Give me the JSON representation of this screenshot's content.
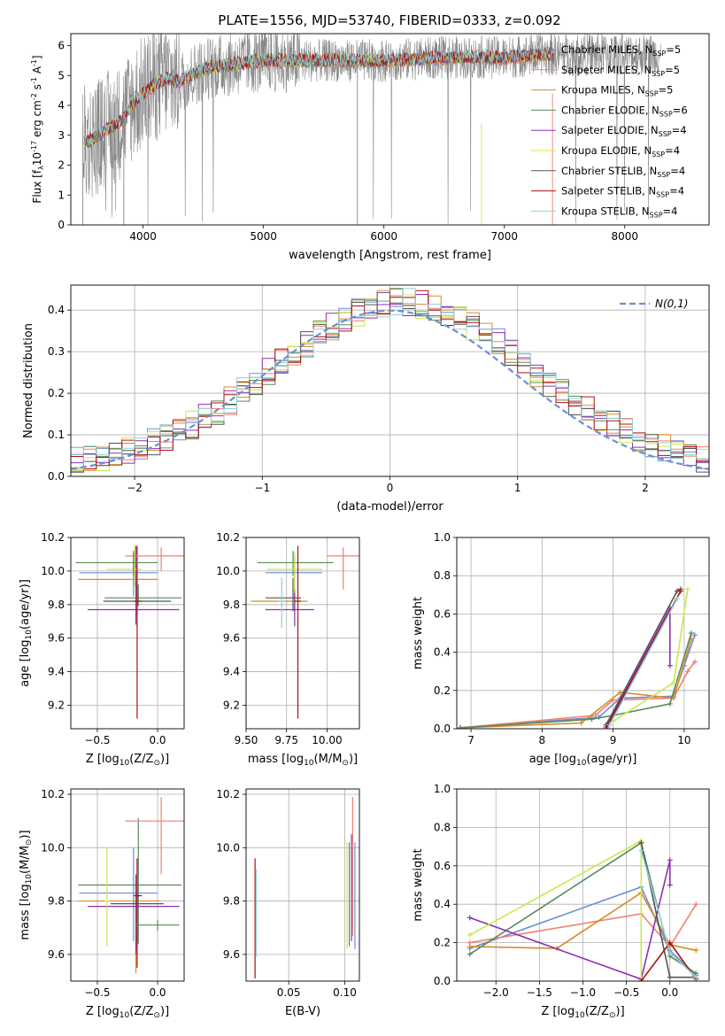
{
  "title": "PLATE=1556, MJD=53740, FIBERID=0333, z=0.092",
  "legend_entries": [
    {
      "name": "Chabrier MILES, N$_{SSP}$=5",
      "label_main": "Chabrier MILES, N",
      "label_sub": "SSP",
      "label_tail": "=5",
      "color": "#6a8fd6"
    },
    {
      "name": "Salpeter MILES, N$_{SSP}$=5",
      "label_main": "Salpeter MILES, N",
      "label_sub": "SSP",
      "label_tail": "=5",
      "color": "#f0826e"
    },
    {
      "name": "Kroupa MILES, N$_{SSP}$=5",
      "label_main": "Kroupa MILES, N",
      "label_sub": "SSP",
      "label_tail": "=5",
      "color": "#d98a2a"
    },
    {
      "name": "Chabrier ELODIE, N$_{SSP}$=6",
      "label_main": "Chabrier ELODIE, N",
      "label_sub": "SSP",
      "label_tail": "=6",
      "color": "#5a8a5a"
    },
    {
      "name": "Salpeter ELODIE, N$_{SSP}$=4",
      "label_main": "Salpeter ELODIE, N",
      "label_sub": "SSP",
      "label_tail": "=4",
      "color": "#8e2fb5"
    },
    {
      "name": "Kroupa ELODIE, N$_{SSP}$=4",
      "label_main": "Kroupa ELODIE, N",
      "label_sub": "SSP",
      "label_tail": "=4",
      "color": "#c8e84a"
    },
    {
      "name": "Chabrier STELIB, N$_{SSP}$=4",
      "label_main": "Chabrier STELIB, N",
      "label_sub": "SSP",
      "label_tail": "=4",
      "color": "#555555"
    },
    {
      "name": "Salpeter STELIB, N$_{SSP}$=4",
      "label_main": "Salpeter STELIB, N",
      "label_sub": "SSP",
      "label_tail": "=4",
      "color": "#b01010"
    },
    {
      "name": "Kroupa STELIB, N$_{SSP}$=4",
      "label_main": "Kroupa STELIB, N",
      "label_sub": "SSP",
      "label_tail": "=4",
      "color": "#8fd0d8"
    }
  ],
  "chart_data": [
    {
      "id": "spectrum",
      "type": "line",
      "xlabel": "wavelength [Angstrom, rest frame]",
      "ylabel_parts": [
        "Flux [f",
        "λ",
        "10",
        "-17",
        " erg cm",
        "-2",
        " s",
        "-1",
        " A",
        "-1",
        "]"
      ],
      "xlim": [
        3400,
        8700
      ],
      "ylim": [
        0,
        6.4
      ],
      "xticks": [
        4000,
        5000,
        6000,
        7000,
        8000
      ],
      "yticks": [
        0,
        1,
        2,
        3,
        4,
        5,
        6
      ],
      "data_color": "#888888",
      "model_color": "#70d4dc",
      "spectrum_knots": {
        "x": [
          3500,
          3600,
          3700,
          3800,
          3900,
          4000,
          4100,
          4200,
          4300,
          4400,
          4500,
          4600,
          4800,
          5000,
          5200,
          5500,
          6000,
          6500,
          7000,
          7300,
          7420
        ],
        "y": [
          2.7,
          2.9,
          3.2,
          3.4,
          4.0,
          4.4,
          4.7,
          4.9,
          4.8,
          5.0,
          5.2,
          5.3,
          5.4,
          5.5,
          5.5,
          5.5,
          5.5,
          5.6,
          5.6,
          5.7,
          5.7
        ]
      },
      "legend_position": "upper-right"
    },
    {
      "id": "residuals",
      "type": "histogram",
      "xlabel": "(data-model)/error",
      "ylabel": "Normed distribution",
      "xlim": [
        -2.5,
        2.5
      ],
      "ylim": [
        0,
        0.46
      ],
      "xticks": [
        -2,
        -1,
        0,
        1,
        2
      ],
      "yticks": [
        0,
        0.1,
        0.2,
        0.3,
        0.4
      ],
      "grid": true,
      "reference_label": "N(0,1)",
      "reference_color": "#6a8fd6",
      "bin_width": 0.1,
      "bin_centers": [
        -2.45,
        -2.35,
        -2.25,
        -2.15,
        -2.05,
        -1.95,
        -1.85,
        -1.75,
        -1.65,
        -1.55,
        -1.45,
        -1.35,
        -1.25,
        -1.15,
        -1.05,
        -0.95,
        -0.85,
        -0.75,
        -0.65,
        -0.55,
        -0.45,
        -0.35,
        -0.25,
        -0.15,
        -0.05,
        0.05,
        0.15,
        0.25,
        0.35,
        0.45,
        0.55,
        0.65,
        0.75,
        0.85,
        0.95,
        1.05,
        1.15,
        1.25,
        1.35,
        1.45,
        1.55,
        1.65,
        1.75,
        1.85,
        1.95,
        2.05,
        2.15,
        2.25,
        2.35,
        2.45
      ],
      "legend_position": "upper-right"
    },
    {
      "id": "age-vs-Z",
      "type": "errorbar",
      "xlabel_parts": [
        "Z [log",
        "10",
        "(Z/Z",
        "⊙",
        ")]"
      ],
      "ylabel_parts": [
        "age  [log",
        "10",
        "(age/yr)]"
      ],
      "xlim": [
        -0.72,
        0.22
      ],
      "ylim": [
        9.06,
        10.2
      ],
      "xticks": [
        -0.5,
        0.0
      ],
      "yticks": [
        9.2,
        9.4,
        9.6,
        9.8,
        10.0,
        10.2
      ],
      "grid": true,
      "points": [
        {
          "x": -0.2,
          "xerr": [
            0.45,
            0.2
          ],
          "y": 9.99,
          "yerr": [
            0.14,
            0.12
          ],
          "series": 0
        },
        {
          "x": -0.18,
          "xerr": [
            0.48,
            0.18
          ],
          "y": 9.95,
          "yerr": [
            0.08,
            0.1
          ],
          "series": 2
        },
        {
          "x": -0.16,
          "xerr": [
            0.28,
            0.36
          ],
          "y": 9.84,
          "yerr": [
            0.05,
            0.08
          ],
          "series": 3
        },
        {
          "x": -0.18,
          "xerr": [
            0.4,
            0.36
          ],
          "y": 9.77,
          "yerr": [
            0.09,
            0.38
          ],
          "series": 4
        },
        {
          "x": -0.19,
          "xerr": [
            0.23,
            0.06
          ],
          "y": 10.01,
          "yerr": [
            0.1,
            0.14
          ],
          "series": 5
        },
        {
          "x": -0.17,
          "xerr": [
            0.28,
            0.28
          ],
          "y": 9.82,
          "yerr": [
            0.08,
            0.12
          ],
          "series": 6
        },
        {
          "x": -0.17,
          "xerr": [
            0.03,
            0.04
          ],
          "y": 9.82,
          "yerr": [
            0.7,
            0.33
          ],
          "series": 7
        },
        {
          "x": 0.03,
          "xerr": [
            0.3,
            0.2
          ],
          "y": 10.09,
          "yerr": [
            0.09,
            0.05
          ],
          "series": 1
        },
        {
          "x": -0.2,
          "xerr": [
            0.48,
            0.2
          ],
          "y": 10.05,
          "yerr": [
            0.08,
            0.07
          ],
          "series": 3
        }
      ]
    },
    {
      "id": "age-vs-mass",
      "type": "errorbar",
      "xlabel_parts": [
        "mass [log",
        "10",
        "(M/M",
        "⊙",
        ")]"
      ],
      "ylabel_parts": [],
      "xlim": [
        9.5,
        10.2
      ],
      "ylim": [
        9.06,
        10.2
      ],
      "xticks": [
        9.5,
        9.75,
        10.0
      ],
      "yticks": [
        9.2,
        9.4,
        9.6,
        9.8,
        10.0,
        10.2
      ],
      "grid": true,
      "points": [
        {
          "x": 9.8,
          "xerr": [
            0.18,
            0.17
          ],
          "y": 9.99,
          "yerr": [
            0.12,
            0.1
          ],
          "series": 0
        },
        {
          "x": 9.8,
          "xerr": [
            0.27,
            0.08
          ],
          "y": 9.82,
          "yerr": [
            0.06,
            0.12
          ],
          "series": 2
        },
        {
          "x": 9.79,
          "xerr": [
            0.22,
            0.25
          ],
          "y": 10.05,
          "yerr": [
            0.08,
            0.07
          ],
          "series": 3
        },
        {
          "x": 9.8,
          "xerr": [
            0.18,
            0.12
          ],
          "y": 9.77,
          "yerr": [
            0.1,
            0.1
          ],
          "series": 4
        },
        {
          "x": 9.8,
          "xerr": [
            0.17,
            0.17
          ],
          "y": 10.01,
          "yerr": [
            0.12,
            0.1
          ],
          "series": 5
        },
        {
          "x": 9.79,
          "xerr": [
            0.17,
            0.05
          ],
          "y": 9.84,
          "yerr": [
            0.08,
            0.12
          ],
          "series": 6
        },
        {
          "x": 9.82,
          "xerr": [
            0.02,
            0.02
          ],
          "y": 9.82,
          "yerr": [
            0.7,
            0.33
          ],
          "series": 7
        },
        {
          "x": 10.1,
          "xerr": [
            0.1,
            0.12
          ],
          "y": 10.09,
          "yerr": [
            0.2,
            0.05
          ],
          "series": 1
        },
        {
          "x": 9.72,
          "xerr": [
            0.02,
            0.02
          ],
          "y": 9.82,
          "yerr": [
            0.16,
            0.14
          ],
          "series": 8
        }
      ]
    },
    {
      "id": "massweight-vs-age",
      "type": "line",
      "xlabel_parts": [
        "age  [log",
        "10",
        "(age/yr)]"
      ],
      "ylabel": "mass weight",
      "xlim": [
        6.8,
        10.35
      ],
      "ylim": [
        0,
        1.0
      ],
      "xticks": [
        7,
        8,
        9,
        10
      ],
      "yticks": [
        0.0,
        0.2,
        0.4,
        0.6,
        0.8,
        1.0
      ],
      "grid": true,
      "series": [
        {
          "idx": 0,
          "x": [
            6.85,
            8.8,
            9.1,
            9.85,
            10.0,
            10.15
          ],
          "y": [
            0.005,
            0.06,
            0.16,
            0.17,
            0.33,
            0.49
          ]
        },
        {
          "idx": 1,
          "x": [
            6.85,
            8.75,
            9.0,
            9.85,
            10.05,
            10.15
          ],
          "y": [
            0.005,
            0.07,
            0.15,
            0.16,
            0.3,
            0.35
          ]
        },
        {
          "idx": 2,
          "x": [
            6.85,
            8.55,
            9.1,
            9.85,
            10.1
          ],
          "y": [
            0.005,
            0.03,
            0.19,
            0.16,
            0.47
          ]
        },
        {
          "idx": 3,
          "x": [
            6.85,
            8.7,
            9.0,
            9.8,
            10.1
          ],
          "y": [
            0.005,
            0.05,
            0.07,
            0.13,
            0.5
          ]
        },
        {
          "idx": 4,
          "x": [
            8.9,
            9.8,
            9.8
          ],
          "y": [
            0.01,
            0.63,
            0.33
          ]
        },
        {
          "idx": 5,
          "x": [
            9.0,
            9.85,
            10.05
          ],
          "y": [
            0.04,
            0.24,
            0.73
          ]
        },
        {
          "idx": 6,
          "x": [
            8.9,
            9.9,
            9.95
          ],
          "y": [
            0.02,
            0.72,
            0.73
          ]
        },
        {
          "idx": 7,
          "x": [
            8.9,
            9.95
          ],
          "y": [
            0.0,
            0.72
          ]
        },
        {
          "idx": 8,
          "x": [
            8.95,
            9.9
          ],
          "y": [
            0.02,
            0.68
          ]
        }
      ]
    },
    {
      "id": "mass-vs-Z",
      "type": "errorbar",
      "xlabel_parts": [
        "Z [log",
        "10",
        "(Z/Z",
        "⊙",
        ")]"
      ],
      "ylabel_parts": [
        "mass [log",
        "10",
        "(M/M",
        "⊙",
        ")]"
      ],
      "xlim": [
        -0.72,
        0.22
      ],
      "ylim": [
        9.5,
        10.22
      ],
      "xticks": [
        -0.5,
        0.0
      ],
      "yticks": [
        9.6,
        9.8,
        10.0,
        10.2
      ],
      "grid": true,
      "points": [
        {
          "x": -0.2,
          "xerr": [
            0.45,
            0.2
          ],
          "y": 9.83,
          "yerr": [
            0.18,
            0.17
          ],
          "series": 0
        },
        {
          "x": -0.18,
          "xerr": [
            0.48,
            0.2
          ],
          "y": 9.8,
          "yerr": [
            0.27,
            0.08
          ],
          "series": 2
        },
        {
          "x": -0.16,
          "xerr": [
            0.5,
            0.36
          ],
          "y": 9.86,
          "yerr": [
            0.22,
            0.25
          ],
          "series": 3
        },
        {
          "x": -0.18,
          "xerr": [
            0.4,
            0.36
          ],
          "y": 9.78,
          "yerr": [
            0.18,
            0.12
          ],
          "series": 4
        },
        {
          "x": -0.42,
          "xerr": [
            0.02,
            0.02
          ],
          "y": 9.8,
          "yerr": [
            0.17,
            0.2
          ],
          "series": 5
        },
        {
          "x": -0.17,
          "xerr": [
            0.22,
            0.22
          ],
          "y": 9.79,
          "yerr": [
            0.17,
            0.05
          ],
          "series": 6
        },
        {
          "x": -0.17,
          "xerr": [
            0.03,
            0.04
          ],
          "y": 9.82,
          "yerr": [
            0.27,
            0.14
          ],
          "series": 7
        },
        {
          "x": 0.03,
          "xerr": [
            0.3,
            0.2
          ],
          "y": 10.1,
          "yerr": [
            0.2,
            0.09
          ],
          "series": 1
        },
        {
          "x": 0.0,
          "xerr": [
            0.18,
            0.18
          ],
          "y": 9.71,
          "yerr": [
            0.02,
            0.02
          ],
          "series": 3
        }
      ]
    },
    {
      "id": "mass-vs-EBV",
      "type": "errorbar",
      "xlabel": "E(B-V)",
      "ylabel_parts": [],
      "xlim": [
        0.012,
        0.113
      ],
      "ylim": [
        9.5,
        10.22
      ],
      "xticks": [
        0.05,
        0.1
      ],
      "yticks": [
        9.6,
        9.8,
        10.0,
        10.2
      ],
      "grid": true,
      "points": [
        {
          "x": 0.02,
          "xerr": [
            0,
            0
          ],
          "y": 9.77,
          "yerr": [
            0.26,
            0.19
          ],
          "series": 7
        },
        {
          "x": 0.021,
          "xerr": [
            0,
            0
          ],
          "y": 9.76,
          "yerr": [
            0.17,
            0.16
          ],
          "series": 8
        },
        {
          "x": 0.102,
          "xerr": [
            0,
            0
          ],
          "y": 9.82,
          "yerr": [
            0.2,
            0.2
          ],
          "series": 5
        },
        {
          "x": 0.104,
          "xerr": [
            0,
            0
          ],
          "y": 9.82,
          "yerr": [
            0.19,
            0.2
          ],
          "series": 3
        },
        {
          "x": 0.106,
          "xerr": [
            0,
            0
          ],
          "y": 9.85,
          "yerr": [
            0.2,
            0.2
          ],
          "series": 4
        },
        {
          "x": 0.107,
          "xerr": [
            0,
            0
          ],
          "y": 9.9,
          "yerr": [
            0.23,
            0.29
          ],
          "series": 1
        },
        {
          "x": 0.109,
          "xerr": [
            0,
            0
          ],
          "y": 9.82,
          "yerr": [
            0.2,
            0.2
          ],
          "series": 0
        }
      ]
    },
    {
      "id": "massweight-vs-Z",
      "type": "line",
      "xlabel_parts": [
        "Z [log",
        "10",
        "(Z/Z",
        "⊙",
        ")]"
      ],
      "ylabel": "mass weight",
      "xlim": [
        -2.45,
        0.45
      ],
      "ylim": [
        0,
        1.0
      ],
      "xticks": [
        -2.0,
        -1.5,
        -1.0,
        -0.5,
        0.0
      ],
      "yticks": [
        0.0,
        0.2,
        0.4,
        0.6,
        0.8,
        1.0
      ],
      "grid": true,
      "series": [
        {
          "idx": 0,
          "x": [
            -2.3,
            -0.33,
            0.0,
            0.3
          ],
          "y": [
            0.17,
            0.49,
            0.16,
            0.03
          ]
        },
        {
          "idx": 1,
          "x": [
            -2.3,
            -0.33,
            0.0,
            0.3
          ],
          "y": [
            0.2,
            0.35,
            0.18,
            0.4
          ]
        },
        {
          "idx": 2,
          "x": [
            -2.3,
            -1.3,
            -0.33,
            0.0,
            0.3
          ],
          "y": [
            0.18,
            0.17,
            0.46,
            0.19,
            0.16
          ]
        },
        {
          "idx": 3,
          "x": [
            -2.3,
            -0.33,
            0.0,
            0.3
          ],
          "y": [
            0.14,
            0.72,
            0.13,
            0.04
          ]
        },
        {
          "idx": 4,
          "x": [
            -2.3,
            -0.33,
            0.0,
            0.0
          ],
          "y": [
            0.33,
            0.01,
            0.63,
            0.5
          ]
        },
        {
          "idx": 5,
          "x": [
            -2.3,
            -0.33,
            -0.33
          ],
          "y": [
            0.24,
            0.73,
            0.0
          ]
        },
        {
          "idx": 6,
          "x": [
            -0.33,
            0.0,
            0.3
          ],
          "y": [
            0.72,
            0.02,
            0.02
          ]
        },
        {
          "idx": 7,
          "x": [
            -0.33,
            0.0,
            0.3
          ],
          "y": [
            0.0,
            0.2,
            0.01
          ]
        },
        {
          "idx": 8,
          "x": [
            -0.33,
            0.0,
            0.3
          ],
          "y": [
            0.68,
            0.15,
            0.02
          ]
        }
      ]
    }
  ]
}
